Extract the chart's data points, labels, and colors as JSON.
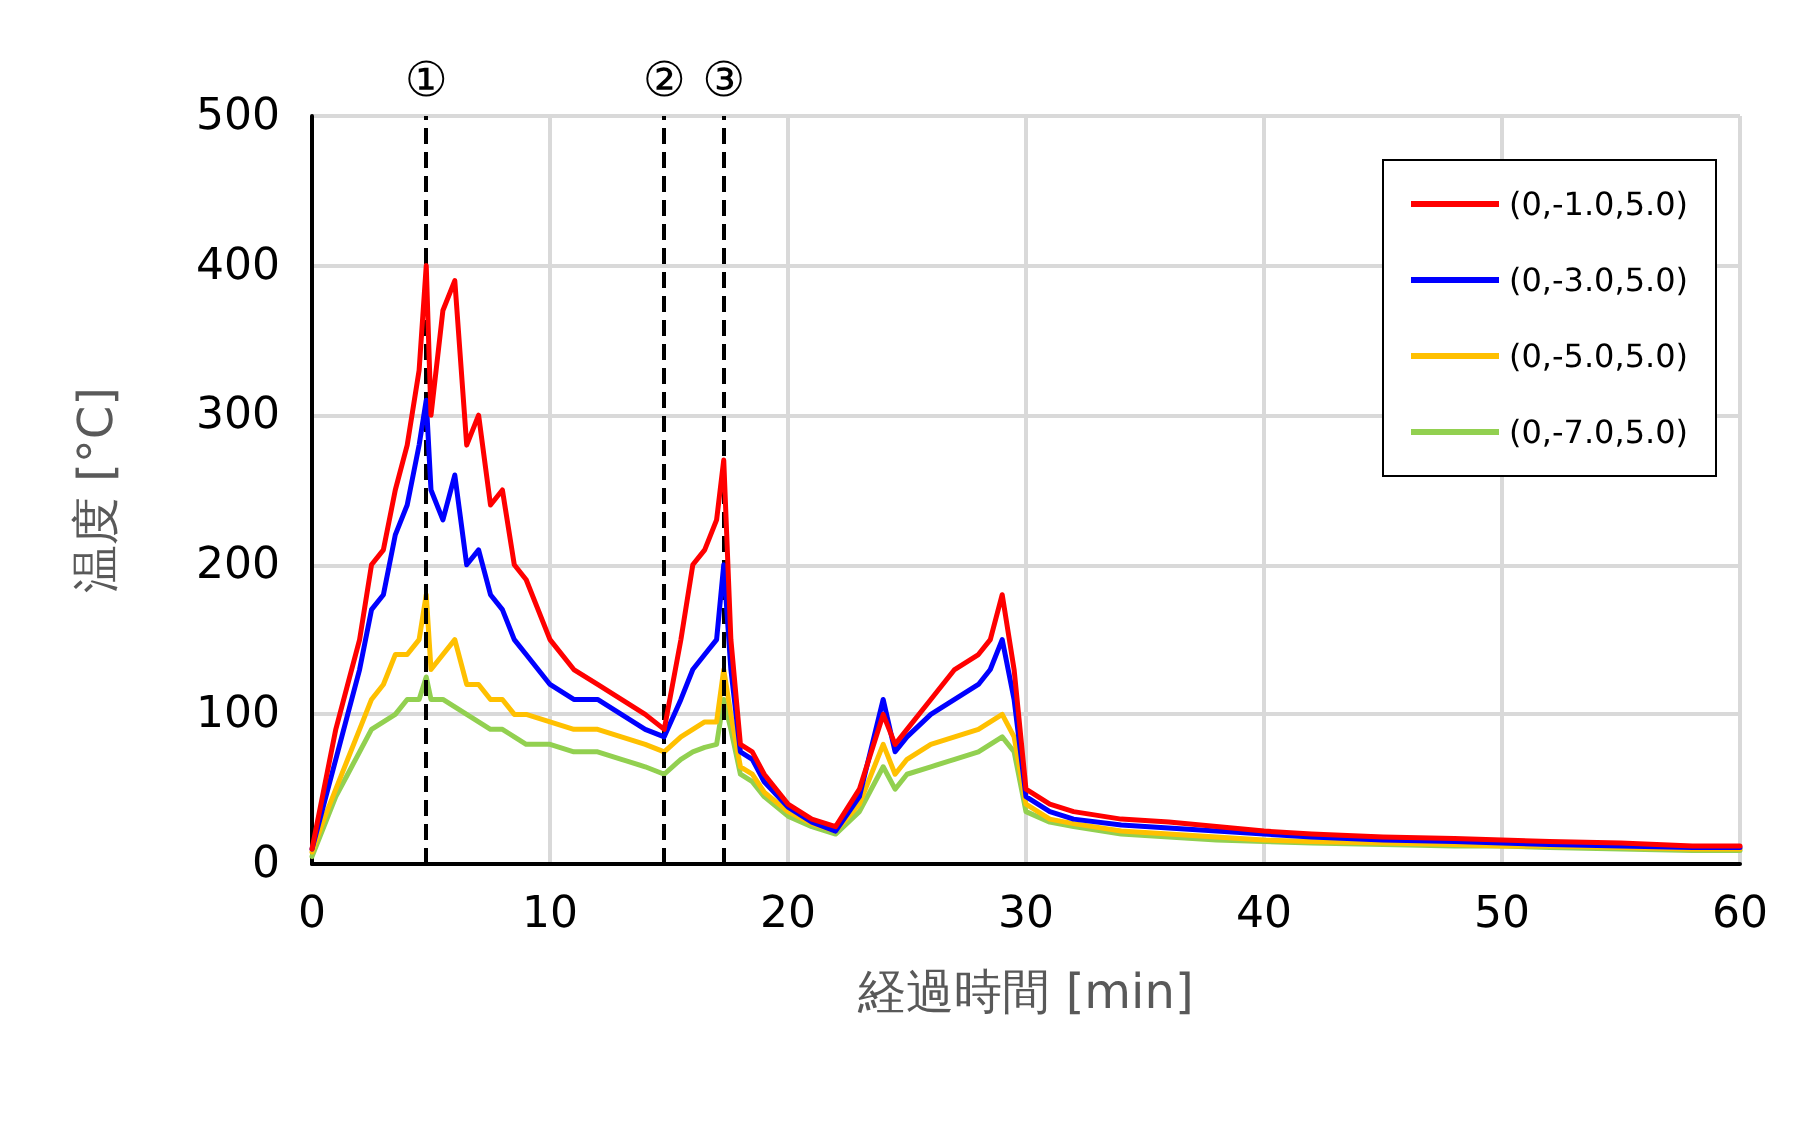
{
  "chart_data": {
    "type": "line",
    "xlabel": "経過時間 [min]",
    "ylabel": "温度 [°C]",
    "x": [
      0,
      0.5,
      1,
      1.5,
      2,
      2.5,
      3,
      3.5,
      4,
      4.5,
      4.8,
      5,
      5.5,
      6,
      6.5,
      7,
      7.5,
      8,
      8.5,
      9,
      10,
      11,
      12,
      13,
      14,
      14.8,
      15.5,
      16,
      16.5,
      17,
      17.3,
      17.6,
      18,
      18.5,
      19,
      20,
      21,
      22,
      23,
      24,
      24.5,
      25,
      26,
      27,
      28,
      28.5,
      29,
      29.5,
      30,
      31,
      32,
      34,
      36,
      38,
      40,
      42,
      45,
      48,
      50,
      52,
      55,
      58,
      60
    ],
    "series": [
      {
        "name": "(0,-1.0,5.0)",
        "color": "#ff0000",
        "values": [
          10,
          50,
          90,
          120,
          150,
          200,
          210,
          250,
          280,
          330,
          400,
          300,
          370,
          390,
          280,
          300,
          240,
          250,
          200,
          190,
          150,
          130,
          120,
          110,
          100,
          90,
          150,
          200,
          210,
          230,
          270,
          150,
          80,
          75,
          60,
          40,
          30,
          25,
          50,
          100,
          80,
          90,
          110,
          130,
          140,
          150,
          180,
          130,
          50,
          40,
          35,
          30,
          28,
          25,
          22,
          20,
          18,
          17,
          16,
          15,
          14,
          12,
          12
        ]
      },
      {
        "name": "(0,-3.0,5.0)",
        "color": "#0000ff",
        "values": [
          10,
          40,
          70,
          100,
          130,
          170,
          180,
          220,
          240,
          280,
          310,
          250,
          230,
          260,
          200,
          210,
          180,
          170,
          150,
          140,
          120,
          110,
          110,
          100,
          90,
          85,
          110,
          130,
          140,
          150,
          200,
          130,
          75,
          70,
          55,
          38,
          28,
          22,
          45,
          110,
          75,
          85,
          100,
          110,
          120,
          130,
          150,
          110,
          45,
          35,
          30,
          26,
          24,
          22,
          20,
          18,
          16,
          15,
          14,
          13,
          12,
          11,
          11
        ]
      },
      {
        "name": "(0,-5.0,5.0)",
        "color": "#ffc000",
        "values": [
          8,
          30,
          50,
          70,
          90,
          110,
          120,
          140,
          140,
          150,
          180,
          130,
          140,
          150,
          120,
          120,
          110,
          110,
          100,
          100,
          95,
          90,
          90,
          85,
          80,
          75,
          85,
          90,
          95,
          95,
          130,
          100,
          65,
          60,
          48,
          35,
          27,
          22,
          40,
          80,
          60,
          70,
          80,
          85,
          90,
          95,
          100,
          85,
          40,
          30,
          27,
          22,
          20,
          18,
          16,
          15,
          14,
          13,
          12,
          12,
          11,
          10,
          10
        ]
      },
      {
        "name": "(0,-7.0,5.0)",
        "color": "#92d050",
        "values": [
          5,
          25,
          45,
          60,
          75,
          90,
          95,
          100,
          110,
          110,
          125,
          110,
          110,
          105,
          100,
          95,
          90,
          90,
          85,
          80,
          80,
          75,
          75,
          70,
          65,
          60,
          70,
          75,
          78,
          80,
          110,
          90,
          60,
          55,
          45,
          32,
          25,
          20,
          35,
          65,
          50,
          60,
          65,
          70,
          75,
          80,
          85,
          75,
          35,
          28,
          25,
          20,
          18,
          16,
          15,
          14,
          13,
          12,
          12,
          11,
          10,
          9,
          9
        ]
      }
    ],
    "ref_lines": [
      {
        "axis": "x",
        "value": 4.8,
        "label": "①",
        "color": "#000000",
        "line_style": "dashed"
      },
      {
        "axis": "x",
        "value": 14.8,
        "label": "②",
        "color": "#000000",
        "line_style": "dashed"
      },
      {
        "axis": "x",
        "value": 17.3,
        "label": "③",
        "color": "#000000",
        "line_style": "dashed"
      }
    ],
    "xlim": [
      0,
      60
    ],
    "xticks": [
      0,
      10,
      20,
      30,
      40,
      50,
      60
    ],
    "ylim": [
      0,
      500
    ],
    "yticks": [
      0,
      100,
      200,
      300,
      400,
      500
    ],
    "grid": true,
    "legend": "top right",
    "marker": "none",
    "line_style": "solid"
  }
}
